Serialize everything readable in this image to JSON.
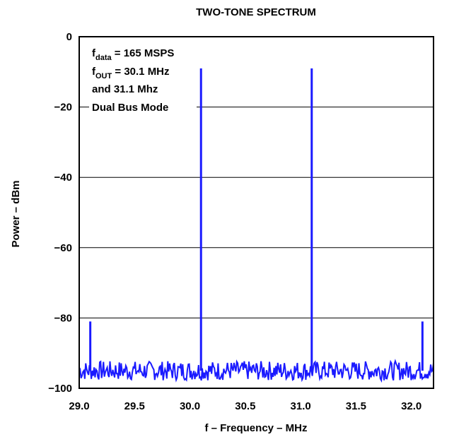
{
  "chart_data": {
    "type": "line",
    "title": "TWO-TONE SPECTRUM",
    "xlabel": "f – Frequency – MHz",
    "ylabel": "Power – dBm",
    "xlim": [
      29.0,
      32.2
    ],
    "ylim": [
      -100,
      0
    ],
    "grid": "horizontal",
    "xticks": [
      29.0,
      29.5,
      30.0,
      30.5,
      31.0,
      31.5,
      32.0
    ],
    "xtick_labels": [
      "29.0",
      "29.5",
      "30.0",
      "30.5",
      "31.0",
      "31.5",
      "32.0"
    ],
    "yticks": [
      0,
      -20,
      -40,
      -60,
      -80,
      -100
    ],
    "ytick_labels": [
      "0",
      "−20",
      "−40",
      "−60",
      "−80",
      "−100"
    ],
    "color": "#1a1aff",
    "noise_floor_dbm": -95,
    "series": [
      {
        "peaks": [
          {
            "x": 29.1,
            "y": -81
          },
          {
            "x": 30.1,
            "y": -9
          },
          {
            "x": 31.1,
            "y": -9
          },
          {
            "x": 32.1,
            "y": -81
          }
        ]
      }
    ],
    "annotations": {
      "line1_main": "f",
      "line1_sub": "data",
      "line1_rest": " = 165 MSPS",
      "line2_main": "f",
      "line2_sub": "OUT",
      "line2_rest": " = 30.1 MHz",
      "line3": "and 31.1 Mhz",
      "line4": "Dual Bus Mode"
    }
  }
}
